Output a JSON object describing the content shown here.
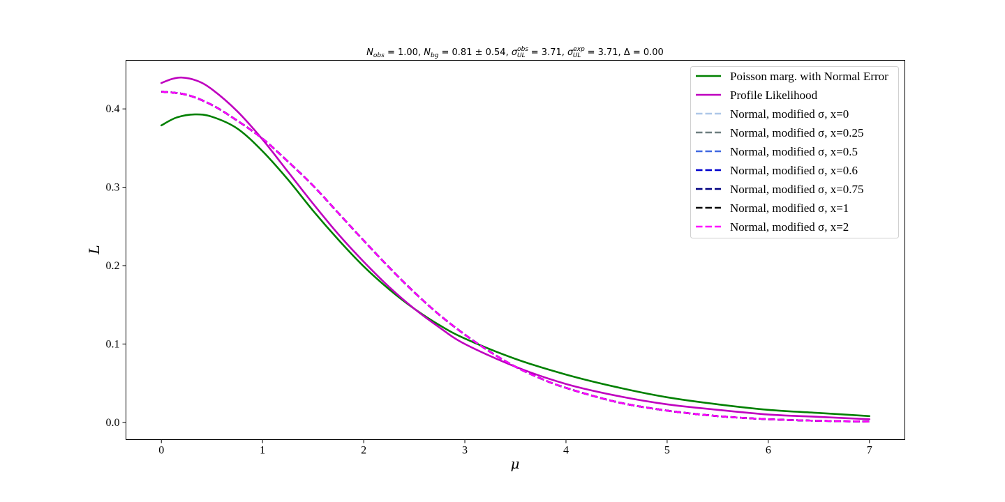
{
  "chart_data": {
    "type": "line",
    "title_parts": {
      "n_obs_sym": "N",
      "n_obs_sub": "obs",
      "n_obs_val": " = 1.00, ",
      "n_bg_sym": "N",
      "n_bg_sub": "bg",
      "n_bg_val": " = 0.81 ± 0.54, ",
      "sig_obs_sym": "σ",
      "sig_obs_sup": "obs",
      "sig_obs_sub": "UL",
      "sig_obs_val": " = 3.71, ",
      "sig_exp_sym": "σ",
      "sig_exp_sup": "exp",
      "sig_exp_sub": "UL",
      "sig_exp_val": " = 3.71, ",
      "delta": "Δ = 0.00"
    },
    "xlabel": "μ",
    "ylabel": "L",
    "xlim": [
      -0.35,
      7.35
    ],
    "ylim": [
      -0.022,
      0.462
    ],
    "xticks": [
      0,
      1,
      2,
      3,
      4,
      5,
      6,
      7
    ],
    "yticks": [
      0.0,
      0.1,
      0.2,
      0.3,
      0.4
    ],
    "ytick_labels": [
      "0.0",
      "0.1",
      "0.2",
      "0.3",
      "0.4"
    ],
    "legend_position": "upper right",
    "series": [
      {
        "name": "Poisson marg. with Normal Error",
        "color": "#008000",
        "dash": "solid",
        "x": [
          0,
          0.15,
          0.33,
          0.5,
          0.75,
          1.0,
          1.25,
          1.5,
          1.75,
          2.0,
          2.25,
          2.5,
          2.75,
          3.0,
          3.5,
          4.0,
          4.5,
          5.0,
          5.5,
          6.0,
          6.5,
          7.0
        ],
        "y": [
          0.379,
          0.389,
          0.393,
          0.39,
          0.375,
          0.346,
          0.31,
          0.27,
          0.233,
          0.199,
          0.17,
          0.145,
          0.124,
          0.107,
          0.081,
          0.061,
          0.045,
          0.032,
          0.023,
          0.016,
          0.012,
          0.008
        ]
      },
      {
        "name": "Profile Likelihood",
        "color": "#bf00bf",
        "dash": "solid",
        "x": [
          0,
          0.1,
          0.2,
          0.35,
          0.5,
          0.75,
          1.0,
          1.25,
          1.5,
          1.75,
          2.0,
          2.25,
          2.5,
          2.75,
          3.0,
          3.5,
          4.0,
          4.5,
          5.0,
          5.5,
          6.0,
          6.5,
          7.0
        ],
        "y": [
          0.433,
          0.438,
          0.44,
          0.436,
          0.425,
          0.397,
          0.361,
          0.32,
          0.279,
          0.24,
          0.205,
          0.173,
          0.145,
          0.121,
          0.1,
          0.071,
          0.049,
          0.034,
          0.023,
          0.016,
          0.01,
          0.007,
          0.004
        ]
      },
      {
        "name": "Normal, modified σ, x=0",
        "color": "#aec7e8",
        "dash": "dashed",
        "x": [
          0,
          0.25,
          0.5,
          0.75,
          1.0,
          1.25,
          1.5,
          1.75,
          2.0,
          2.25,
          2.5,
          2.75,
          3.0,
          3.25,
          3.5,
          3.75,
          4.0,
          4.5,
          5.0,
          5.5,
          6.0,
          6.5,
          7.0
        ],
        "y": [
          0.422,
          0.418,
          0.405,
          0.385,
          0.362,
          0.333,
          0.302,
          0.267,
          0.232,
          0.198,
          0.166,
          0.137,
          0.112,
          0.09,
          0.071,
          0.056,
          0.044,
          0.026,
          0.015,
          0.008,
          0.004,
          0.002,
          0.001
        ]
      },
      {
        "name": "Normal, modified σ, x=0.25",
        "color": "#6e7f80",
        "dash": "dashed",
        "x": [
          0,
          0.25,
          0.5,
          0.75,
          1.0,
          1.25,
          1.5,
          1.75,
          2.0,
          2.25,
          2.5,
          2.75,
          3.0,
          3.25,
          3.5,
          3.75,
          4.0,
          4.5,
          5.0,
          5.5,
          6.0,
          6.5,
          7.0
        ],
        "y": [
          0.422,
          0.418,
          0.405,
          0.385,
          0.362,
          0.333,
          0.302,
          0.267,
          0.232,
          0.198,
          0.166,
          0.137,
          0.112,
          0.09,
          0.071,
          0.056,
          0.044,
          0.026,
          0.015,
          0.008,
          0.004,
          0.002,
          0.001
        ]
      },
      {
        "name": "Normal, modified σ, x=0.5",
        "color": "#4169e1",
        "dash": "dashed",
        "x": [
          0,
          0.25,
          0.5,
          0.75,
          1.0,
          1.25,
          1.5,
          1.75,
          2.0,
          2.25,
          2.5,
          2.75,
          3.0,
          3.25,
          3.5,
          3.75,
          4.0,
          4.5,
          5.0,
          5.5,
          6.0,
          6.5,
          7.0
        ],
        "y": [
          0.422,
          0.418,
          0.405,
          0.385,
          0.362,
          0.333,
          0.302,
          0.267,
          0.232,
          0.198,
          0.166,
          0.137,
          0.112,
          0.09,
          0.071,
          0.056,
          0.044,
          0.026,
          0.015,
          0.008,
          0.004,
          0.002,
          0.001
        ]
      },
      {
        "name": "Normal, modified σ, x=0.6",
        "color": "#0000cd",
        "dash": "dashed",
        "x": [
          0,
          0.25,
          0.5,
          0.75,
          1.0,
          1.25,
          1.5,
          1.75,
          2.0,
          2.25,
          2.5,
          2.75,
          3.0,
          3.25,
          3.5,
          3.75,
          4.0,
          4.5,
          5.0,
          5.5,
          6.0,
          6.5,
          7.0
        ],
        "y": [
          0.422,
          0.418,
          0.405,
          0.385,
          0.362,
          0.333,
          0.302,
          0.267,
          0.232,
          0.198,
          0.166,
          0.137,
          0.112,
          0.09,
          0.071,
          0.056,
          0.044,
          0.026,
          0.015,
          0.008,
          0.004,
          0.002,
          0.001
        ]
      },
      {
        "name": "Normal, modified σ, x=0.75",
        "color": "#000080",
        "dash": "dashed",
        "x": [
          0,
          0.25,
          0.5,
          0.75,
          1.0,
          1.25,
          1.5,
          1.75,
          2.0,
          2.25,
          2.5,
          2.75,
          3.0,
          3.25,
          3.5,
          3.75,
          4.0,
          4.5,
          5.0,
          5.5,
          6.0,
          6.5,
          7.0
        ],
        "y": [
          0.422,
          0.418,
          0.405,
          0.385,
          0.362,
          0.333,
          0.302,
          0.267,
          0.232,
          0.198,
          0.166,
          0.137,
          0.112,
          0.09,
          0.071,
          0.056,
          0.044,
          0.026,
          0.015,
          0.008,
          0.004,
          0.002,
          0.001
        ]
      },
      {
        "name": "Normal, modified σ, x=1",
        "color": "#000000",
        "dash": "dashed",
        "x": [
          0,
          0.25,
          0.5,
          0.75,
          1.0,
          1.25,
          1.5,
          1.75,
          2.0,
          2.25,
          2.5,
          2.75,
          3.0,
          3.25,
          3.5,
          3.75,
          4.0,
          4.5,
          5.0,
          5.5,
          6.0,
          6.5,
          7.0
        ],
        "y": [
          0.422,
          0.418,
          0.405,
          0.385,
          0.362,
          0.333,
          0.302,
          0.267,
          0.232,
          0.198,
          0.166,
          0.137,
          0.112,
          0.09,
          0.071,
          0.056,
          0.044,
          0.026,
          0.015,
          0.008,
          0.004,
          0.002,
          0.001
        ]
      },
      {
        "name": "Normal, modified σ, x=2",
        "color": "#ff00ff",
        "dash": "dashed",
        "x": [
          0,
          0.25,
          0.5,
          0.75,
          1.0,
          1.25,
          1.5,
          1.75,
          2.0,
          2.25,
          2.5,
          2.75,
          3.0,
          3.25,
          3.5,
          3.75,
          4.0,
          4.5,
          5.0,
          5.5,
          6.0,
          6.5,
          7.0
        ],
        "y": [
          0.422,
          0.418,
          0.405,
          0.385,
          0.362,
          0.333,
          0.302,
          0.267,
          0.232,
          0.198,
          0.166,
          0.137,
          0.112,
          0.09,
          0.071,
          0.056,
          0.044,
          0.026,
          0.015,
          0.008,
          0.004,
          0.002,
          0.001
        ]
      }
    ]
  }
}
